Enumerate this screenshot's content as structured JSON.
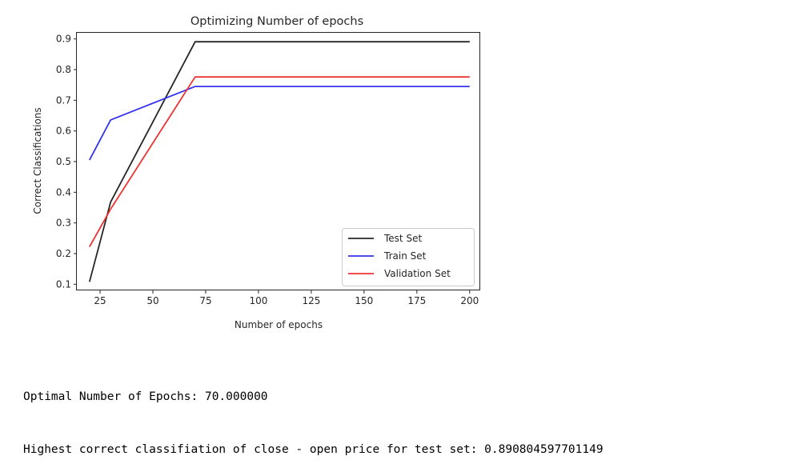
{
  "chart_data": {
    "type": "line",
    "title": "Optimizing Number of epochs",
    "xlabel": "Number of epochs",
    "ylabel": "Correct Classifications",
    "x": [
      20,
      30,
      70,
      200
    ],
    "xlim": [
      14,
      205
    ],
    "ylim": [
      0.08,
      0.92
    ],
    "xticks": [
      25,
      50,
      75,
      100,
      125,
      150,
      175,
      200
    ],
    "yticks": [
      0.1,
      0.2,
      0.3,
      0.4,
      0.5,
      0.6,
      0.7,
      0.8,
      0.9
    ],
    "xtick_labels": [
      "25",
      "50",
      "75",
      "100",
      "125",
      "150",
      "175",
      "200"
    ],
    "ytick_labels": [
      "0.1",
      "0.2",
      "0.3",
      "0.4",
      "0.5",
      "0.6",
      "0.7",
      "0.8",
      "0.9"
    ],
    "grid": false,
    "legend_position": "bottom-right",
    "series": [
      {
        "name": "Test Set",
        "color": "#262626",
        "values": [
          0.108,
          0.368,
          0.8908,
          0.8908
        ]
      },
      {
        "name": "Train Set",
        "color": "#3333ee",
        "values": [
          0.505,
          0.636,
          0.745,
          0.745
        ]
      },
      {
        "name": "Validation Set",
        "color": "#ee3333",
        "values": [
          0.222,
          0.345,
          0.776,
          0.776
        ]
      }
    ]
  },
  "output": {
    "line1": "Optimal Number of Epochs: 70.000000",
    "line2": "Highest correct classifiation of close - open price for test set: 0.890804597701149"
  }
}
